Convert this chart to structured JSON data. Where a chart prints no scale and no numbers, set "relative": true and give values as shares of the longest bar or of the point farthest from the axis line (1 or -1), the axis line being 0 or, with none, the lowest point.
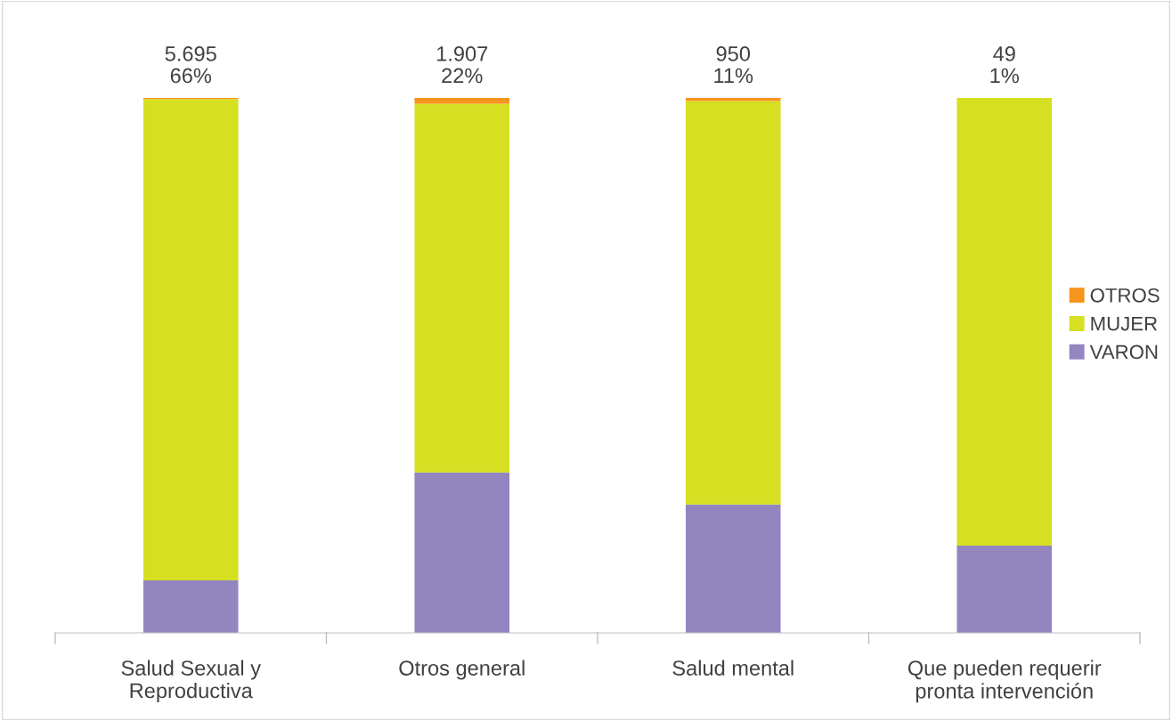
{
  "chart_data": {
    "type": "bar",
    "stacked": true,
    "relative": true,
    "categories": [
      "Salud Sexual y\nReproductiva",
      "Otros general",
      "Salud mental",
      "Que pueden requerir\npronta intervención"
    ],
    "series": [
      {
        "name": "VARON",
        "color": "#9386c0",
        "values": [
          0.098,
          0.3,
          0.24,
          0.163
        ]
      },
      {
        "name": "MUJER",
        "color": "#d6df22",
        "values": [
          0.9,
          0.689,
          0.754,
          0.837
        ]
      },
      {
        "name": "OTROS",
        "color": "#f7941d",
        "values": [
          0.002,
          0.011,
          0.006,
          0.0
        ]
      }
    ],
    "totals": [
      "5.695\n66%",
      "1.907\n22%",
      "950\n11%",
      "49\n1%"
    ],
    "legend": "right"
  }
}
